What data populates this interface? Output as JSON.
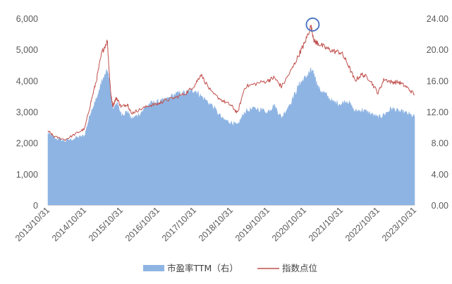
{
  "chart_data": {
    "type": "line",
    "title": "",
    "xlabel": "",
    "ylabel": "",
    "ylim_left": [
      0,
      6000
    ],
    "ylim_right": [
      0,
      24
    ],
    "yticks_left": [
      "0",
      "1,000",
      "2,000",
      "3,000",
      "4,000",
      "5,000",
      "6,000"
    ],
    "yticks_right": [
      "0.00",
      "4.00",
      "8.00",
      "12.00",
      "16.00",
      "20.00",
      "24.00"
    ],
    "xticks": [
      "2013/10/31",
      "2014/10/31",
      "2015/10/31",
      "2016/10/31",
      "2017/10/31",
      "2018/10/31",
      "2019/10/31",
      "2020/10/31",
      "2021/10/31",
      "2022/10/31",
      "2023/10/31"
    ],
    "grid": false,
    "legend_placement": "bottom",
    "x": [
      2013.83,
      2014.0,
      2014.3,
      2014.6,
      2014.83,
      2015.0,
      2015.15,
      2015.3,
      2015.45,
      2015.5,
      2015.55,
      2015.6,
      2015.7,
      2015.83,
      2016.0,
      2016.1,
      2016.3,
      2016.6,
      2016.83,
      2017.0,
      2017.3,
      2017.6,
      2017.83,
      2018.0,
      2018.3,
      2018.6,
      2018.83,
      2019.0,
      2019.2,
      2019.5,
      2019.83,
      2020.0,
      2020.2,
      2020.5,
      2020.7,
      2020.83,
      2021.0,
      2021.1,
      2021.2,
      2021.4,
      2021.6,
      2021.83,
      2022.0,
      2022.2,
      2022.4,
      2022.6,
      2022.83,
      2023.0,
      2023.2,
      2023.4,
      2023.6,
      2023.83
    ],
    "series": [
      {
        "name": "市盈率TTM（右）",
        "type": "area",
        "axis": "right",
        "color": "#8EB4E3",
        "values": [
          9.2,
          8.6,
          8.2,
          8.6,
          8.9,
          12.0,
          13.5,
          15.8,
          17.2,
          16.0,
          13.5,
          12.2,
          13.2,
          11.6,
          12.0,
          11.0,
          11.6,
          13.0,
          13.2,
          13.4,
          14.2,
          14.4,
          14.8,
          14.0,
          12.8,
          11.0,
          10.6,
          10.2,
          12.0,
          12.4,
          12.0,
          12.8,
          11.2,
          13.6,
          15.6,
          16.2,
          17.2,
          16.6,
          15.0,
          14.2,
          13.2,
          13.0,
          13.4,
          12.0,
          12.2,
          11.8,
          11.2,
          11.6,
          12.4,
          12.0,
          11.8,
          11.3
        ]
      },
      {
        "name": "指数点位",
        "type": "line",
        "axis": "left",
        "color": "#C0504D",
        "values": [
          2380,
          2200,
          2100,
          2300,
          2450,
          3300,
          4000,
          4900,
          5280,
          4300,
          3500,
          3200,
          3450,
          3150,
          3250,
          2950,
          3050,
          3200,
          3250,
          3350,
          3450,
          3600,
          3850,
          4200,
          3600,
          3350,
          3200,
          2950,
          3800,
          3900,
          4000,
          4100,
          3800,
          4400,
          4900,
          5200,
          5750,
          5250,
          5200,
          5050,
          4950,
          4900,
          4550,
          4000,
          4200,
          4050,
          3600,
          4050,
          3950,
          3950,
          3800,
          3550
        ]
      }
    ],
    "annotations": [
      {
        "type": "circle",
        "x": 2021.05,
        "y": 5800,
        "axis": "left",
        "color": "#4472C4"
      }
    ]
  }
}
